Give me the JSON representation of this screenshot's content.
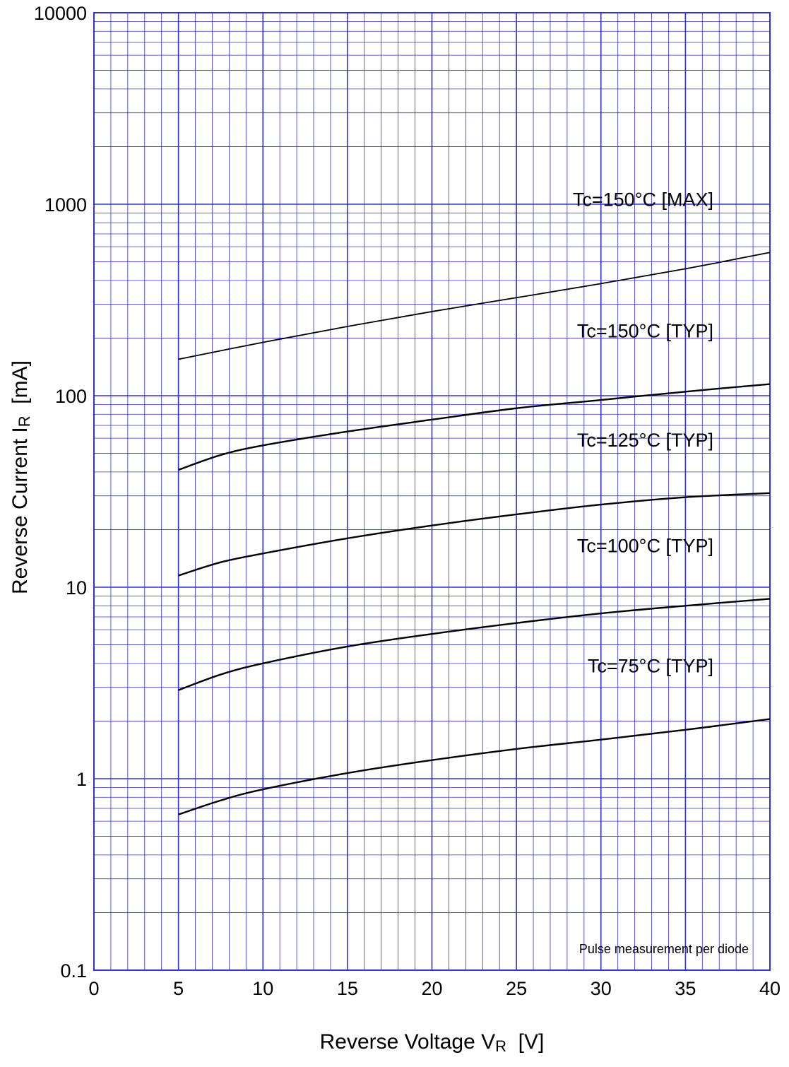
{
  "chart_data": {
    "type": "line",
    "title": "",
    "xlabel": {
      "main": "Reverse Voltage  V",
      "sub": "R",
      "unit": "  [V]"
    },
    "ylabel": {
      "main": "Reverse Current  I",
      "sub": "R",
      "unit": "  [mA]"
    },
    "x_scale": "linear",
    "y_scale": "log",
    "xlim": [
      0,
      40
    ],
    "ylim": [
      0.1,
      10000
    ],
    "x_ticks": [
      "0",
      "5",
      "10",
      "15",
      "20",
      "25",
      "30",
      "35",
      "40"
    ],
    "y_ticks": [
      "0.1",
      "1",
      "10",
      "100",
      "1000",
      "10000"
    ],
    "grid": true,
    "grid_color": "#3333cc",
    "line_color": "#000000",
    "annotation": "Pulse measurement per diode",
    "series": [
      {
        "name": "Tc=150°C [MAX]",
        "x": [
          5,
          10,
          15,
          20,
          25,
          30,
          35,
          40
        ],
        "y": [
          155,
          190,
          230,
          275,
          325,
          385,
          460,
          560
        ]
      },
      {
        "name": "Tc=150°C [TYP]",
        "x": [
          5,
          7.5,
          10,
          15,
          20,
          25,
          30,
          35,
          40
        ],
        "y": [
          41,
          49,
          55,
          65,
          75,
          86,
          95,
          105,
          115
        ]
      },
      {
        "name": "Tc=125°C [TYP]",
        "x": [
          5,
          7.5,
          10,
          15,
          20,
          25,
          30,
          35,
          40
        ],
        "y": [
          11.5,
          13.5,
          15,
          18,
          21,
          24,
          27,
          29.5,
          31
        ]
      },
      {
        "name": "Tc=100°C [TYP]",
        "x": [
          5,
          7.5,
          10,
          15,
          20,
          25,
          30,
          35,
          40
        ],
        "y": [
          2.9,
          3.5,
          4,
          4.9,
          5.7,
          6.5,
          7.3,
          8,
          8.7
        ]
      },
      {
        "name": "Tc=75°C [TYP]",
        "x": [
          5,
          7.5,
          10,
          15,
          20,
          25,
          30,
          35,
          40
        ],
        "y": [
          0.65,
          0.77,
          0.88,
          1.07,
          1.25,
          1.43,
          1.6,
          1.8,
          2.05
        ]
      }
    ]
  }
}
